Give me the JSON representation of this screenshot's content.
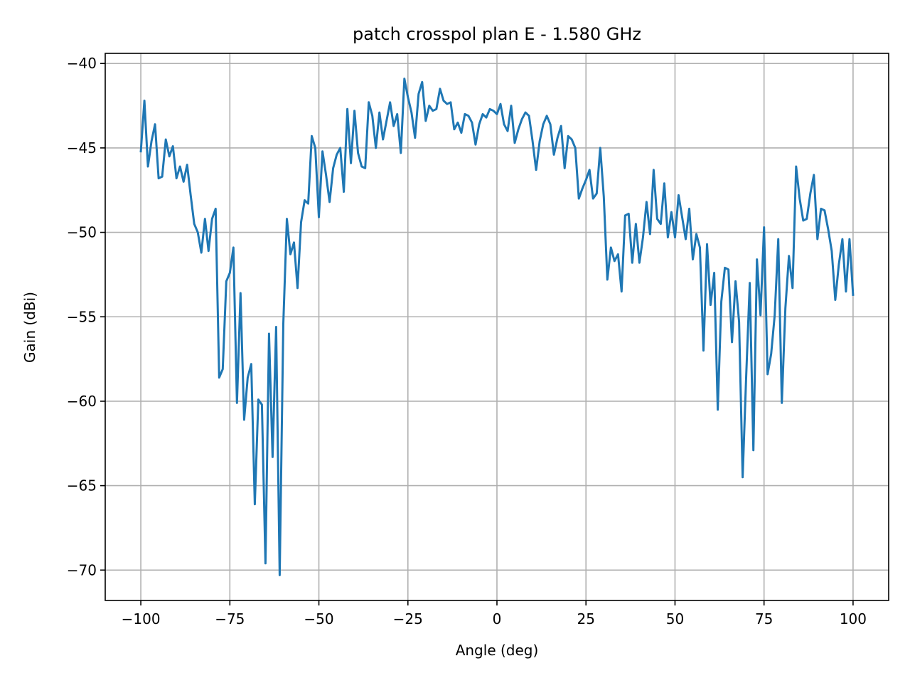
{
  "chart_data": {
    "type": "line",
    "title": "patch crosspol plan E - 1.580 GHz",
    "xlabel": "Angle (deg)",
    "ylabel": "Gain (dBi)",
    "xlim": [
      -110,
      110
    ],
    "ylim": [
      -71.8,
      -39.4
    ],
    "xticks": [
      -100,
      -75,
      -50,
      -25,
      0,
      25,
      50,
      75,
      100
    ],
    "yticks": [
      -40,
      -45,
      -50,
      -55,
      -60,
      -65,
      -70
    ],
    "xtick_labels": [
      "−100",
      "−75",
      "−50",
      "−25",
      "0",
      "25",
      "50",
      "75",
      "100"
    ],
    "ytick_labels": [
      "−40",
      "−45",
      "−50",
      "−55",
      "−60",
      "−65",
      "−70"
    ],
    "grid": true,
    "legend": "none",
    "series": [
      {
        "color": "#1f77b4",
        "x": [
          -100,
          -99,
          -98,
          -97,
          -96,
          -95,
          -94,
          -93,
          -92,
          -91,
          -90,
          -89,
          -88,
          -87,
          -86,
          -85,
          -84,
          -83,
          -82,
          -81,
          -80,
          -79,
          -78,
          -77,
          -76,
          -75,
          -74,
          -73,
          -72,
          -71,
          -70,
          -69,
          -68,
          -67,
          -66,
          -65,
          -64,
          -63,
          -62,
          -61,
          -60,
          -59,
          -58,
          -57,
          -56,
          -55,
          -54,
          -53,
          -52,
          -51,
          -50,
          -49,
          -48,
          -47,
          -46,
          -45,
          -44,
          -43,
          -42,
          -41,
          -40,
          -39,
          -38,
          -37,
          -36,
          -35,
          -34,
          -33,
          -32,
          -31,
          -30,
          -29,
          -28,
          -27,
          -26,
          -25,
          -24,
          -23,
          -22,
          -21,
          -20,
          -19,
          -18,
          -17,
          -16,
          -15,
          -14,
          -13,
          -12,
          -11,
          -10,
          -9,
          -8,
          -7,
          -6,
          -5,
          -4,
          -3,
          -2,
          -1,
          0,
          1,
          2,
          3,
          4,
          5,
          6,
          7,
          8,
          9,
          10,
          11,
          12,
          13,
          14,
          15,
          16,
          17,
          18,
          19,
          20,
          21,
          22,
          23,
          24,
          25,
          26,
          27,
          28,
          29,
          30,
          31,
          32,
          33,
          34,
          35,
          36,
          37,
          38,
          39,
          40,
          41,
          42,
          43,
          44,
          45,
          46,
          47,
          48,
          49,
          50,
          51,
          52,
          53,
          54,
          55,
          56,
          57,
          58,
          59,
          60,
          61,
          62,
          63,
          64,
          65,
          66,
          67,
          68,
          69,
          70,
          71,
          72,
          73,
          74,
          75,
          76,
          77,
          78,
          79,
          80,
          81,
          82,
          83,
          84,
          85,
          86,
          87,
          88,
          89,
          90,
          91,
          92,
          93,
          94,
          95,
          96,
          97,
          98,
          99,
          100
        ],
        "y": [
          -45.2,
          -42.2,
          -46.1,
          -44.6,
          -43.6,
          -46.8,
          -46.7,
          -44.5,
          -45.5,
          -44.9,
          -46.8,
          -46.1,
          -47.0,
          -46.0,
          -47.8,
          -49.5,
          -50.0,
          -51.2,
          -49.2,
          -51.1,
          -49.2,
          -48.6,
          -58.6,
          -58.1,
          -52.9,
          -52.4,
          -50.9,
          -60.1,
          -53.6,
          -61.1,
          -58.6,
          -57.8,
          -66.1,
          -59.9,
          -60.2,
          -69.6,
          -56.0,
          -63.3,
          -55.6,
          -70.3,
          -55.4,
          -49.2,
          -51.3,
          -50.6,
          -53.3,
          -49.4,
          -48.1,
          -48.3,
          -44.3,
          -45.0,
          -49.1,
          -45.2,
          -46.6,
          -48.2,
          -46.2,
          -45.4,
          -45.0,
          -47.6,
          -42.7,
          -45.9,
          -42.8,
          -45.3,
          -46.1,
          -46.2,
          -42.3,
          -43.1,
          -45.0,
          -42.9,
          -44.5,
          -43.4,
          -42.3,
          -43.7,
          -43.0,
          -45.3,
          -40.9,
          -42.0,
          -42.9,
          -44.4,
          -41.8,
          -41.1,
          -43.4,
          -42.5,
          -42.8,
          -42.7,
          -41.5,
          -42.2,
          -42.4,
          -42.3,
          -43.9,
          -43.5,
          -44.1,
          -43.0,
          -43.1,
          -43.5,
          -44.8,
          -43.6,
          -43.0,
          -43.2,
          -42.7,
          -42.8,
          -43.0,
          -42.4,
          -43.6,
          -44.0,
          -42.5,
          -44.7,
          -43.9,
          -43.3,
          -42.9,
          -43.1,
          -44.6,
          -46.3,
          -44.6,
          -43.6,
          -43.1,
          -43.6,
          -45.4,
          -44.4,
          -43.7,
          -46.2,
          -44.3,
          -44.5,
          -45.0,
          -48.0,
          -47.4,
          -46.9,
          -46.3,
          -48.0,
          -47.7,
          -45.0,
          -47.9,
          -52.8,
          -50.9,
          -51.7,
          -51.3,
          -53.5,
          -49.0,
          -48.9,
          -51.8,
          -49.5,
          -51.8,
          -50.3,
          -48.2,
          -50.1,
          -46.3,
          -49.2,
          -49.5,
          -47.1,
          -50.3,
          -48.8,
          -50.3,
          -47.8,
          -49.1,
          -50.4,
          -48.6,
          -51.6,
          -50.1,
          -50.9,
          -57.0,
          -50.7,
          -54.3,
          -52.4,
          -60.5,
          -54.1,
          -52.1,
          -52.2,
          -56.5,
          -52.9,
          -55.3,
          -64.5,
          -58.5,
          -53.0,
          -62.9,
          -51.6,
          -54.9,
          -49.7,
          -58.4,
          -57.2,
          -54.9,
          -50.4,
          -60.1,
          -54.5,
          -51.4,
          -53.3,
          -46.1,
          -48.0,
          -49.3,
          -49.2,
          -47.7,
          -46.6,
          -50.4,
          -48.6,
          -48.7,
          -49.8,
          -51.1,
          -54.0,
          -51.9,
          -50.4,
          -53.5,
          -50.4,
          -53.7
        ]
      }
    ]
  }
}
